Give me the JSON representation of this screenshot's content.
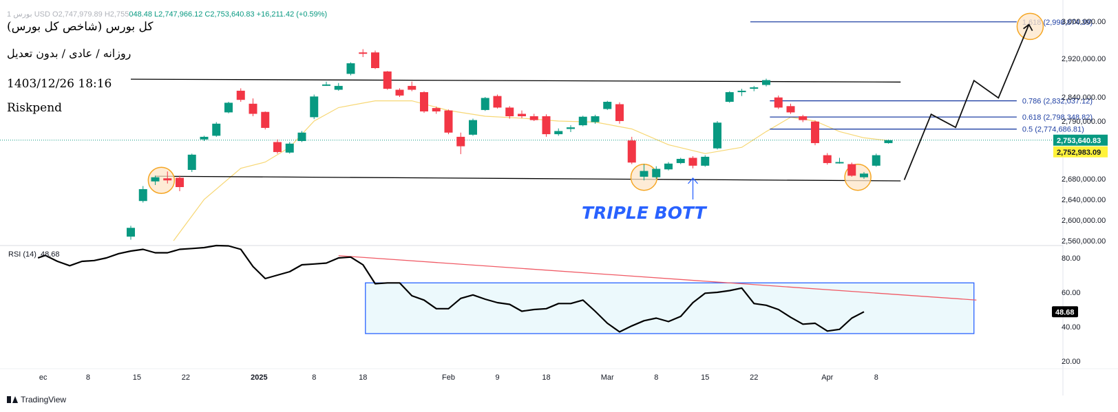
{
  "header": {
    "ohlc_dim": "1 بورس USD O2,747,979.89 H2,755",
    "ohlc_rest": "048.48  L2,747,966.12  C2,753,640.83  +16,211.42 (+0.59%)",
    "title_lines": [
      "کل بورس (شاخص کل بورس)",
      "روزانه / عادی / بدون تعدیل",
      "1403/12/26 18:16",
      "Riskpend"
    ]
  },
  "rsi_legend": {
    "label": "RSI (14)",
    "value": "48.68"
  },
  "brand": {
    "name": "TradingView"
  },
  "colors": {
    "up": "#089981",
    "down": "#f23645",
    "ma": "#f7d774",
    "fib": "#1e3fa3",
    "trend": "#000000",
    "highlight_fill": "#fde5c8",
    "highlight_stroke": "#f5a623",
    "annotation": "#2962ff",
    "rsi_box_fill": "#ecf9fc",
    "rsi_box_stroke": "#2962ff",
    "rsi_divergence": "#f05a65",
    "price_label_bg": "#089981",
    "ma_label_bg": "#fff23a"
  },
  "chart_data": [
    {
      "type": "candlestick",
      "y_ticks": [
        2560000,
        2600000,
        2640000,
        2680000,
        2790000,
        2840000,
        2920000,
        3000000
      ],
      "y_tick_labels": [
        "2,560,000.00",
        "2,600,000.00",
        "2,640,000.00",
        "2,680,000.00",
        "2,790,000.00",
        "2,840,000.00",
        "2,920,000.00",
        "3,000,000.00"
      ],
      "x_ticks": [
        {
          "label": "ec",
          "i": -19.5
        },
        {
          "label": "8",
          "i": -15.5
        },
        {
          "label": "15",
          "i": -11.5
        },
        {
          "label": "22",
          "i": -7.5
        },
        {
          "label": "2025",
          "i": -1.5
        },
        {
          "label": "8",
          "i": 3
        },
        {
          "label": "18",
          "i": 7
        },
        {
          "label": "Feb",
          "i": 14
        },
        {
          "label": "9",
          "i": 18
        },
        {
          "label": "18",
          "i": 22
        },
        {
          "label": "Mar",
          "i": 27
        },
        {
          "label": "8",
          "i": 31
        },
        {
          "label": "15",
          "i": 35
        },
        {
          "label": "22",
          "i": 39
        },
        {
          "label": "Apr",
          "i": 45
        },
        {
          "label": "8",
          "i": 49
        }
      ],
      "candles": [
        {
          "i": -12,
          "o": 2568000,
          "h": 2589000,
          "l": 2562000,
          "c": 2585000
        },
        {
          "i": -11,
          "o": 2637000,
          "h": 2666000,
          "l": 2634000,
          "c": 2660000
        },
        {
          "i": -10,
          "o": 2675000,
          "h": 2686000,
          "l": 2668000,
          "c": 2683000
        },
        {
          "i": -9,
          "o": 2681000,
          "h": 2694000,
          "l": 2671000,
          "c": 2677000
        },
        {
          "i": -8,
          "o": 2682000,
          "h": 2686000,
          "l": 2656000,
          "c": 2664000
        },
        {
          "i": -7,
          "o": 2697000,
          "h": 2728000,
          "l": 2693000,
          "c": 2726000
        },
        {
          "i": -6,
          "o": 2755000,
          "h": 2762000,
          "l": 2752000,
          "c": 2760000
        },
        {
          "i": -5,
          "o": 2762000,
          "h": 2788000,
          "l": 2760000,
          "c": 2785000
        },
        {
          "i": -4,
          "o": 2808000,
          "h": 2830000,
          "l": 2806000,
          "c": 2828000
        },
        {
          "i": -3,
          "o": 2853000,
          "h": 2858000,
          "l": 2830000,
          "c": 2834000
        },
        {
          "i": -2,
          "o": 2826000,
          "h": 2837000,
          "l": 2800000,
          "c": 2805000
        },
        {
          "i": -1,
          "o": 2809000,
          "h": 2810000,
          "l": 2774000,
          "c": 2777000
        },
        {
          "i": 0,
          "o": 2750000,
          "h": 2755000,
          "l": 2728000,
          "c": 2731000
        },
        {
          "i": 1,
          "o": 2730000,
          "h": 2750000,
          "l": 2728000,
          "c": 2747000
        },
        {
          "i": 2,
          "o": 2752000,
          "h": 2771000,
          "l": 2750000,
          "c": 2768000
        },
        {
          "i": 3,
          "o": 2798000,
          "h": 2845000,
          "l": 2794000,
          "c": 2841000
        },
        {
          "i": 4,
          "o": 2866000,
          "h": 2872000,
          "l": 2863000,
          "c": 2866000
        },
        {
          "i": 5,
          "o": 2855000,
          "h": 2869000,
          "l": 2853000,
          "c": 2863000
        },
        {
          "i": 6,
          "o": 2888000,
          "h": 2912000,
          "l": 2885000,
          "c": 2910000
        },
        {
          "i": 7,
          "o": 2933000,
          "h": 2940000,
          "l": 2923000,
          "c": 2931000
        },
        {
          "i": 8,
          "o": 2933000,
          "h": 2937000,
          "l": 2898000,
          "c": 2900000
        },
        {
          "i": 9,
          "o": 2893000,
          "h": 2894000,
          "l": 2855000,
          "c": 2857000
        },
        {
          "i": 10,
          "o": 2855000,
          "h": 2858000,
          "l": 2840000,
          "c": 2843000
        },
        {
          "i": 11,
          "o": 2863000,
          "h": 2872000,
          "l": 2852000,
          "c": 2855000
        },
        {
          "i": 12,
          "o": 2850000,
          "h": 2852000,
          "l": 2807000,
          "c": 2810000
        },
        {
          "i": 13,
          "o": 2817000,
          "h": 2820000,
          "l": 2805000,
          "c": 2810000
        },
        {
          "i": 14,
          "o": 2812000,
          "h": 2814000,
          "l": 2765000,
          "c": 2768000
        },
        {
          "i": 15,
          "o": 2760000,
          "h": 2768000,
          "l": 2727000,
          "c": 2742000
        },
        {
          "i": 16,
          "o": 2764000,
          "h": 2795000,
          "l": 2762000,
          "c": 2792000
        },
        {
          "i": 17,
          "o": 2813000,
          "h": 2840000,
          "l": 2811000,
          "c": 2838000
        },
        {
          "i": 18,
          "o": 2842000,
          "h": 2845000,
          "l": 2816000,
          "c": 2818000
        },
        {
          "i": 19,
          "o": 2818000,
          "h": 2821000,
          "l": 2795000,
          "c": 2800000
        },
        {
          "i": 20,
          "o": 2805000,
          "h": 2812000,
          "l": 2796000,
          "c": 2800000
        },
        {
          "i": 21,
          "o": 2800000,
          "h": 2805000,
          "l": 2790000,
          "c": 2792000
        },
        {
          "i": 22,
          "o": 2800000,
          "h": 2804000,
          "l": 2760000,
          "c": 2765000
        },
        {
          "i": 23,
          "o": 2765000,
          "h": 2776000,
          "l": 2762000,
          "c": 2771000
        },
        {
          "i": 24,
          "o": 2775000,
          "h": 2782000,
          "l": 2769000,
          "c": 2778000
        },
        {
          "i": 25,
          "o": 2782000,
          "h": 2801000,
          "l": 2780000,
          "c": 2799000
        },
        {
          "i": 26,
          "o": 2788000,
          "h": 2803000,
          "l": 2785000,
          "c": 2800000
        },
        {
          "i": 27,
          "o": 2815000,
          "h": 2832000,
          "l": 2813000,
          "c": 2830000
        },
        {
          "i": 28,
          "o": 2825000,
          "h": 2829000,
          "l": 2785000,
          "c": 2790000
        },
        {
          "i": 29,
          "o": 2753000,
          "h": 2760000,
          "l": 2708000,
          "c": 2711000
        },
        {
          "i": 30,
          "o": 2684000,
          "h": 2708000,
          "l": 2677000,
          "c": 2695000
        },
        {
          "i": 31,
          "o": 2683000,
          "h": 2704000,
          "l": 2680000,
          "c": 2699000
        },
        {
          "i": 32,
          "o": 2698000,
          "h": 2712000,
          "l": 2696000,
          "c": 2709000
        },
        {
          "i": 33,
          "o": 2710000,
          "h": 2720000,
          "l": 2708000,
          "c": 2718000
        },
        {
          "i": 34,
          "o": 2720000,
          "h": 2723000,
          "l": 2700000,
          "c": 2705000
        },
        {
          "i": 35,
          "o": 2705000,
          "h": 2725000,
          "l": 2703000,
          "c": 2722000
        },
        {
          "i": 36,
          "o": 2738000,
          "h": 2790000,
          "l": 2736000,
          "c": 2787000
        },
        {
          "i": 37,
          "o": 2830000,
          "h": 2852000,
          "l": 2828000,
          "c": 2850000
        },
        {
          "i": 38,
          "o": 2850000,
          "h": 2857000,
          "l": 2842000,
          "c": 2853000
        },
        {
          "i": 39,
          "o": 2858000,
          "h": 2863000,
          "l": 2852000,
          "c": 2860000
        },
        {
          "i": 40,
          "o": 2865000,
          "h": 2878000,
          "l": 2862000,
          "c": 2875000
        },
        {
          "i": 41,
          "o": 2839000,
          "h": 2843000,
          "l": 2815000,
          "c": 2818000
        },
        {
          "i": 42,
          "o": 2821000,
          "h": 2826000,
          "l": 2805000,
          "c": 2808000
        },
        {
          "i": 43,
          "o": 2800000,
          "h": 2803000,
          "l": 2788000,
          "c": 2792000
        },
        {
          "i": 44,
          "o": 2789000,
          "h": 2791000,
          "l": 2744000,
          "c": 2748000
        },
        {
          "i": 45,
          "o": 2725000,
          "h": 2729000,
          "l": 2707000,
          "c": 2710000
        },
        {
          "i": 46,
          "o": 2710000,
          "h": 2720000,
          "l": 2709000,
          "c": 2712000
        },
        {
          "i": 47,
          "o": 2708000,
          "h": 2711000,
          "l": 2684000,
          "c": 2686000
        },
        {
          "i": 48,
          "o": 2683000,
          "h": 2693000,
          "l": 2680000,
          "c": 2690000
        },
        {
          "i": 49,
          "o": 2705000,
          "h": 2728000,
          "l": 2703000,
          "c": 2725000
        },
        {
          "i": 50,
          "o": 2748000,
          "h": 2755000,
          "l": 2747000,
          "c": 2753640
        }
      ],
      "moving_average": [
        [
          -8.5,
          2560000
        ],
        [
          -6,
          2640000
        ],
        [
          -3,
          2700000
        ],
        [
          -1,
          2712000
        ],
        [
          1,
          2740000
        ],
        [
          3,
          2790000
        ],
        [
          5,
          2818000
        ],
        [
          8,
          2832000
        ],
        [
          11,
          2832000
        ],
        [
          14,
          2812000
        ],
        [
          17,
          2800000
        ],
        [
          20,
          2796000
        ],
        [
          23,
          2790000
        ],
        [
          26,
          2788000
        ],
        [
          29,
          2775000
        ],
        [
          32,
          2745000
        ],
        [
          35,
          2728000
        ],
        [
          38,
          2740000
        ],
        [
          40,
          2770000
        ],
        [
          42,
          2798000
        ],
        [
          44,
          2790000
        ],
        [
          46,
          2770000
        ],
        [
          48,
          2758000
        ],
        [
          50,
          2752983
        ]
      ],
      "price_label": "2,753,640.83",
      "ma_label": "2,752,983.09",
      "fib_levels": [
        {
          "label": "1.618 (2,998,874.39)",
          "value": 2998874,
          "i0": 38.7,
          "i1": 60.5
        },
        {
          "label": "0.786 (2,832,037.12)",
          "value": 2832037,
          "i0": 40.3,
          "i1": 60.5
        },
        {
          "label": "0.618 (2,798,348.82)",
          "value": 2798348,
          "i0": 40.3,
          "i1": 60.5
        },
        {
          "label": "0.5 (2,774,686.81)",
          "value": 2774686,
          "i0": 40.3,
          "i1": 60.5
        }
      ],
      "trend_lines": [
        [
          [
            -12,
            2877000
          ],
          [
            51,
            2871000
          ]
        ],
        [
          [
            -10,
            2685000
          ],
          [
            51,
            2676000
          ]
        ]
      ],
      "projection": [
        [
          51.3,
          2678000
        ],
        [
          53.5,
          2804000
        ],
        [
          55.5,
          2778000
        ],
        [
          57.0,
          2874000
        ],
        [
          59.0,
          2838000
        ],
        [
          61.5,
          2993000
        ]
      ],
      "circles": [
        [
          -9.5,
          2677000
        ],
        [
          30,
          2683000
        ],
        [
          47.5,
          2683000
        ],
        [
          61.6,
          2989000
        ]
      ],
      "annotation_text": "TRIPLE BOTT",
      "annotation_arrow_i": 34
    },
    {
      "type": "line",
      "name": "RSI (14)",
      "y_ticks": [
        20,
        40,
        60,
        80
      ],
      "y_tick_labels": [
        "20.00",
        "40.00",
        "60.00",
        "80.00"
      ],
      "values": [
        [
          -19.6,
          80.0
        ],
        [
          -19,
          81.5
        ],
        [
          -18,
          78
        ],
        [
          -17,
          75.5
        ],
        [
          -16,
          78
        ],
        [
          -15,
          78.5
        ],
        [
          -14,
          80
        ],
        [
          -13,
          82.5
        ],
        [
          -12,
          84
        ],
        [
          -11,
          85
        ],
        [
          -10,
          83
        ],
        [
          -9,
          83
        ],
        [
          -8,
          85
        ],
        [
          -7,
          85.5
        ],
        [
          -6,
          86
        ],
        [
          -5,
          88
        ],
        [
          -4,
          87
        ],
        [
          -3,
          85
        ],
        [
          -2,
          75
        ],
        [
          -1,
          68
        ],
        [
          0,
          70
        ],
        [
          1,
          72
        ],
        [
          2,
          76
        ],
        [
          3,
          76.5
        ],
        [
          4,
          77
        ],
        [
          5,
          80
        ],
        [
          6,
          80.5
        ],
        [
          7,
          76
        ],
        [
          8,
          65
        ],
        [
          9,
          65.5
        ],
        [
          10,
          65.5
        ],
        [
          11,
          58
        ],
        [
          12,
          55.5
        ],
        [
          13,
          50.5
        ],
        [
          14,
          50.5
        ],
        [
          15,
          56.5
        ],
        [
          16,
          58.5
        ],
        [
          17,
          56
        ],
        [
          18,
          54
        ],
        [
          19,
          53
        ],
        [
          20,
          49
        ],
        [
          21,
          50
        ],
        [
          22,
          50.5
        ],
        [
          23,
          53.5
        ],
        [
          24,
          53.5
        ],
        [
          25,
          55.5
        ],
        [
          26,
          49
        ],
        [
          27,
          42
        ],
        [
          28,
          37
        ],
        [
          29,
          40.5
        ],
        [
          30,
          43.5
        ],
        [
          31,
          45
        ],
        [
          32,
          43
        ],
        [
          33,
          46
        ],
        [
          34,
          54
        ],
        [
          35,
          59.5
        ],
        [
          36,
          60
        ],
        [
          37,
          61
        ],
        [
          38,
          62.5
        ],
        [
          39,
          53.5
        ],
        [
          40,
          52.5
        ],
        [
          41,
          50
        ],
        [
          42,
          45.5
        ],
        [
          43,
          41.5
        ],
        [
          44,
          42
        ],
        [
          45,
          37.5
        ],
        [
          46,
          38.5
        ],
        [
          47,
          45
        ],
        [
          48,
          48.68
        ]
      ],
      "box": {
        "i0": 7.2,
        "i1": 57.0,
        "v_low": 36,
        "v_high": 65.5
      },
      "divergence": [
        [
          5,
          81.3
        ],
        [
          57.2,
          55.5
        ]
      ],
      "value_label": "48.68"
    }
  ]
}
